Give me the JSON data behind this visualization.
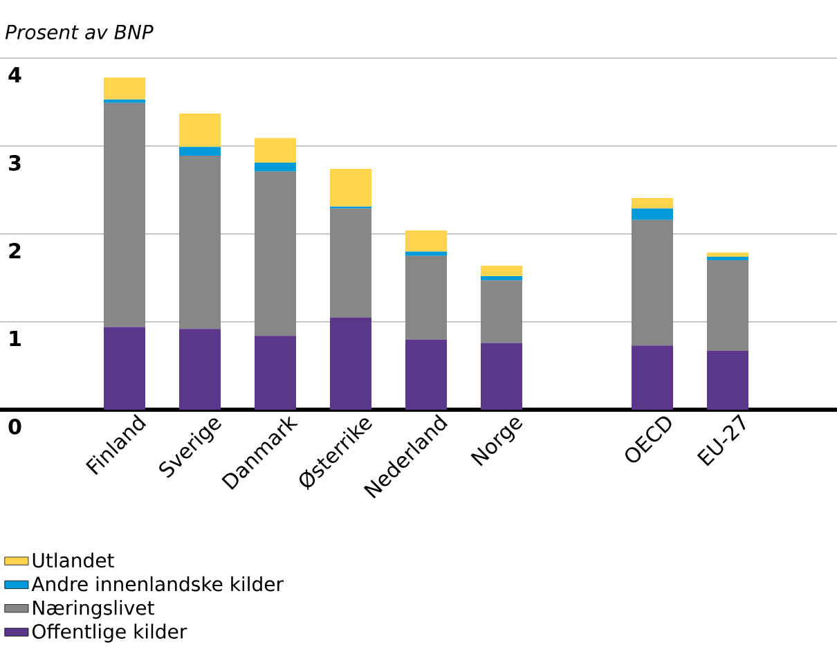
{
  "chart_data": {
    "type": "bar",
    "stacked": true,
    "ylabel": "Prosent av BNP",
    "categories": [
      "Finland",
      "Sverige",
      "Danmark",
      "Østerrike",
      "Nederland",
      "Norge",
      null,
      "OECD",
      "EU-27"
    ],
    "series": [
      {
        "name": "Offentlige kilder",
        "color": "#5b378c",
        "values": [
          0.94,
          0.92,
          0.84,
          1.05,
          0.8,
          0.76,
          null,
          0.73,
          0.67
        ]
      },
      {
        "name": "Næringslivet",
        "color": "#878787",
        "values": [
          2.55,
          1.97,
          1.87,
          1.24,
          0.95,
          0.71,
          null,
          1.43,
          1.03
        ]
      },
      {
        "name": "Andre innenlandske kilder",
        "color": "#009ad8",
        "values": [
          0.04,
          0.1,
          0.1,
          0.02,
          0.05,
          0.05,
          null,
          0.13,
          0.04
        ]
      },
      {
        "name": "Utlandet",
        "color": "#ffd54f",
        "values": [
          0.25,
          0.38,
          0.28,
          0.43,
          0.24,
          0.12,
          null,
          0.12,
          0.05
        ]
      }
    ],
    "ylim": [
      0,
      4
    ],
    "yticks": [
      0,
      1,
      2,
      3,
      4
    ],
    "grid": "y",
    "legend": "bottom"
  }
}
